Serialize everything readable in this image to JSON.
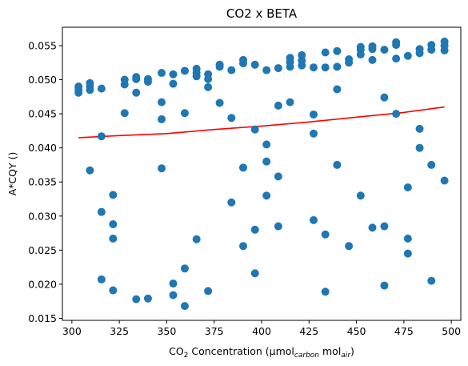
{
  "chart_data": {
    "type": "scatter",
    "title": "CO2 x BETA",
    "xlabel": {
      "prefix": "CO",
      "prefix_sub": "2",
      "middle": " Concentration (μmol",
      "sub1": "carbon",
      "middle2": " mol",
      "sub2": "air",
      "suffix": ")"
    },
    "ylabel": "A*CQY ()",
    "xlim": [
      295,
      505
    ],
    "ylim": [
      0.0147,
      0.0577
    ],
    "xticks": [
      300,
      325,
      350,
      375,
      400,
      425,
      450,
      475,
      500
    ],
    "xtick_labels": [
      "300",
      "325",
      "350",
      "375",
      "400",
      "425",
      "450",
      "475",
      "500"
    ],
    "yticks": [
      0.015,
      0.02,
      0.025,
      0.03,
      0.035,
      0.04,
      0.045,
      0.05,
      0.055
    ],
    "ytick_labels": [
      "0.015",
      "0.020",
      "0.025",
      "0.030",
      "0.035",
      "0.040",
      "0.045",
      "0.050",
      "0.055"
    ],
    "grid": false,
    "point_color": "#1f77b4",
    "fit_color": "#ff0000",
    "points": [
      [
        303.5,
        0.0481
      ],
      [
        303.5,
        0.0485
      ],
      [
        303.5,
        0.049
      ],
      [
        309.5,
        0.0485
      ],
      [
        309.5,
        0.049
      ],
      [
        309.5,
        0.0495
      ],
      [
        309.5,
        0.0367
      ],
      [
        315.6,
        0.0487
      ],
      [
        315.6,
        0.0417
      ],
      [
        315.6,
        0.0306
      ],
      [
        315.6,
        0.0207
      ],
      [
        321.7,
        0.0331
      ],
      [
        321.7,
        0.0288
      ],
      [
        321.7,
        0.0267
      ],
      [
        321.7,
        0.0191
      ],
      [
        327.8,
        0.0493
      ],
      [
        327.8,
        0.05
      ],
      [
        327.8,
        0.0451
      ],
      [
        333.9,
        0.0481
      ],
      [
        333.9,
        0.0501
      ],
      [
        333.9,
        0.0504
      ],
      [
        333.9,
        0.0178
      ],
      [
        340.1,
        0.0501
      ],
      [
        340.1,
        0.0497
      ],
      [
        340.1,
        0.0179
      ],
      [
        347.3,
        0.051
      ],
      [
        347.3,
        0.0467
      ],
      [
        347.3,
        0.0442
      ],
      [
        347.3,
        0.037
      ],
      [
        353.4,
        0.0508
      ],
      [
        353.4,
        0.0494
      ],
      [
        353.4,
        0.0201
      ],
      [
        353.4,
        0.0184
      ],
      [
        359.5,
        0.0513
      ],
      [
        359.5,
        0.0451
      ],
      [
        359.5,
        0.0223
      ],
      [
        359.5,
        0.0168
      ],
      [
        365.7,
        0.0516
      ],
      [
        365.7,
        0.0505
      ],
      [
        365.7,
        0.051
      ],
      [
        365.7,
        0.0266
      ],
      [
        371.8,
        0.0508
      ],
      [
        371.8,
        0.0501
      ],
      [
        371.8,
        0.0489
      ],
      [
        371.8,
        0.019
      ],
      [
        377.9,
        0.0522
      ],
      [
        377.9,
        0.0519
      ],
      [
        377.9,
        0.0466
      ],
      [
        384.1,
        0.0514
      ],
      [
        384.1,
        0.0444
      ],
      [
        384.1,
        0.032
      ],
      [
        390.3,
        0.0529
      ],
      [
        390.3,
        0.0524
      ],
      [
        390.3,
        0.0371
      ],
      [
        390.3,
        0.0256
      ],
      [
        396.5,
        0.0522
      ],
      [
        396.5,
        0.0427
      ],
      [
        396.5,
        0.028
      ],
      [
        396.5,
        0.0216
      ],
      [
        402.6,
        0.0514
      ],
      [
        402.6,
        0.0405
      ],
      [
        402.6,
        0.038
      ],
      [
        402.6,
        0.033
      ],
      [
        408.8,
        0.0517
      ],
      [
        408.8,
        0.0462
      ],
      [
        408.8,
        0.0358
      ],
      [
        408.8,
        0.0285
      ],
      [
        415.0,
        0.0532
      ],
      [
        415.0,
        0.0526
      ],
      [
        415.0,
        0.0519
      ],
      [
        415.0,
        0.0467
      ],
      [
        421.2,
        0.0536
      ],
      [
        421.2,
        0.0528
      ],
      [
        421.2,
        0.0521
      ],
      [
        427.4,
        0.0518
      ],
      [
        427.4,
        0.0449
      ],
      [
        427.4,
        0.0421
      ],
      [
        427.4,
        0.0294
      ],
      [
        433.6,
        0.054
      ],
      [
        433.6,
        0.0518
      ],
      [
        433.6,
        0.0273
      ],
      [
        433.6,
        0.0189
      ],
      [
        439.8,
        0.0542
      ],
      [
        439.8,
        0.0519
      ],
      [
        439.8,
        0.0486
      ],
      [
        439.8,
        0.0375
      ],
      [
        446.0,
        0.053
      ],
      [
        446.0,
        0.0525
      ],
      [
        446.0,
        0.0256
      ],
      [
        452.2,
        0.0548
      ],
      [
        452.2,
        0.0544
      ],
      [
        452.2,
        0.0537
      ],
      [
        452.2,
        0.033
      ],
      [
        458.4,
        0.0549
      ],
      [
        458.4,
        0.0545
      ],
      [
        458.4,
        0.0529
      ],
      [
        458.4,
        0.0283
      ],
      [
        464.7,
        0.0544
      ],
      [
        464.7,
        0.0474
      ],
      [
        464.7,
        0.0285
      ],
      [
        464.7,
        0.0198
      ],
      [
        470.9,
        0.0555
      ],
      [
        470.9,
        0.0551
      ],
      [
        470.9,
        0.0531
      ],
      [
        470.9,
        0.045
      ],
      [
        477.1,
        0.0535
      ],
      [
        477.1,
        0.0342
      ],
      [
        477.1,
        0.0267
      ],
      [
        477.1,
        0.0245
      ],
      [
        483.3,
        0.0545
      ],
      [
        483.3,
        0.0539
      ],
      [
        483.3,
        0.0428
      ],
      [
        483.3,
        0.04
      ],
      [
        489.5,
        0.0551
      ],
      [
        489.5,
        0.0544
      ],
      [
        489.5,
        0.0375
      ],
      [
        489.5,
        0.0205
      ],
      [
        496.4,
        0.0556
      ],
      [
        496.4,
        0.055
      ],
      [
        496.4,
        0.0543
      ],
      [
        496.4,
        0.0352
      ]
    ],
    "fit_line": [
      [
        303.5,
        0.0415
      ],
      [
        325,
        0.0418
      ],
      [
        350,
        0.0421
      ],
      [
        375,
        0.0427
      ],
      [
        400,
        0.0432
      ],
      [
        425,
        0.0438
      ],
      [
        450,
        0.0445
      ],
      [
        475,
        0.0452
      ],
      [
        496.4,
        0.046
      ]
    ]
  }
}
